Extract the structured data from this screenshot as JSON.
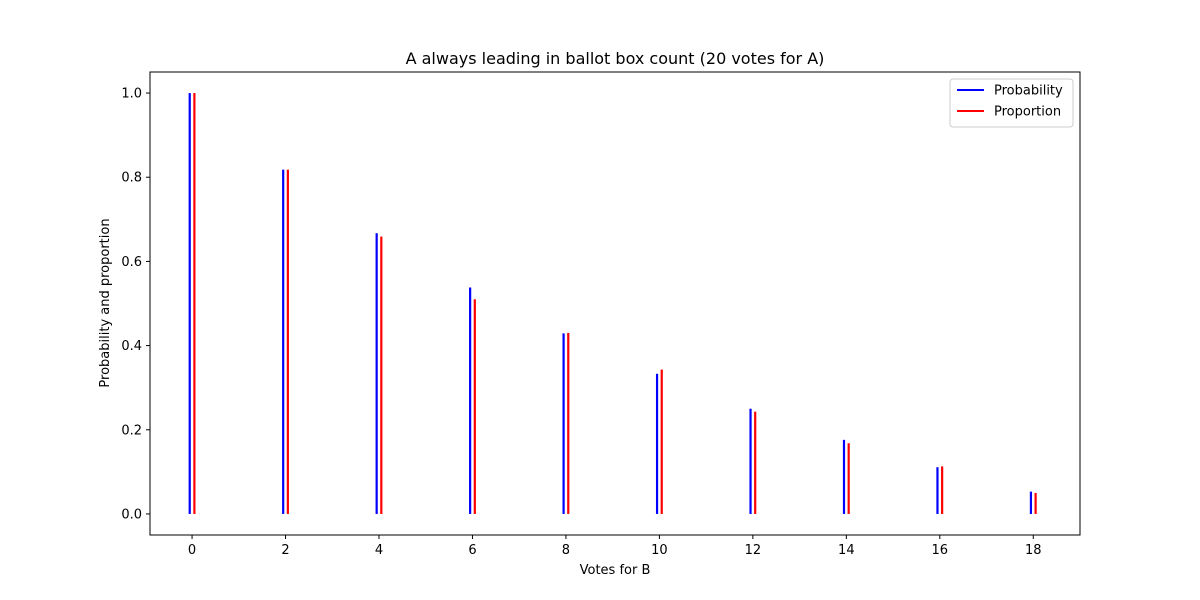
{
  "chart_data": {
    "type": "bar",
    "title": "A always leading in ballot box count (20 votes for A)",
    "xlabel": "Votes for B",
    "ylabel": "Probability and proportion",
    "xlim": [
      -0.9,
      19.0
    ],
    "ylim": [
      -0.05,
      1.05
    ],
    "xticks": [
      0,
      2,
      4,
      6,
      8,
      10,
      12,
      14,
      16,
      18
    ],
    "yticks": [
      0.0,
      0.2,
      0.4,
      0.6,
      0.8,
      1.0
    ],
    "ytick_labels": [
      "0.0",
      "0.2",
      "0.4",
      "0.6",
      "0.8",
      "1.0"
    ],
    "x": [
      0,
      2,
      4,
      6,
      8,
      10,
      12,
      14,
      16,
      18
    ],
    "series": [
      {
        "name": "Probability",
        "color": "#0000ff",
        "values": [
          1.0,
          0.818,
          0.667,
          0.538,
          0.429,
          0.333,
          0.25,
          0.176,
          0.111,
          0.053
        ]
      },
      {
        "name": "Proportion",
        "color": "#ff0000",
        "values": [
          1.0,
          0.818,
          0.659,
          0.51,
          0.43,
          0.343,
          0.243,
          0.168,
          0.113,
          0.05
        ]
      }
    ],
    "legend": {
      "position": "top-right"
    },
    "grid": false
  }
}
